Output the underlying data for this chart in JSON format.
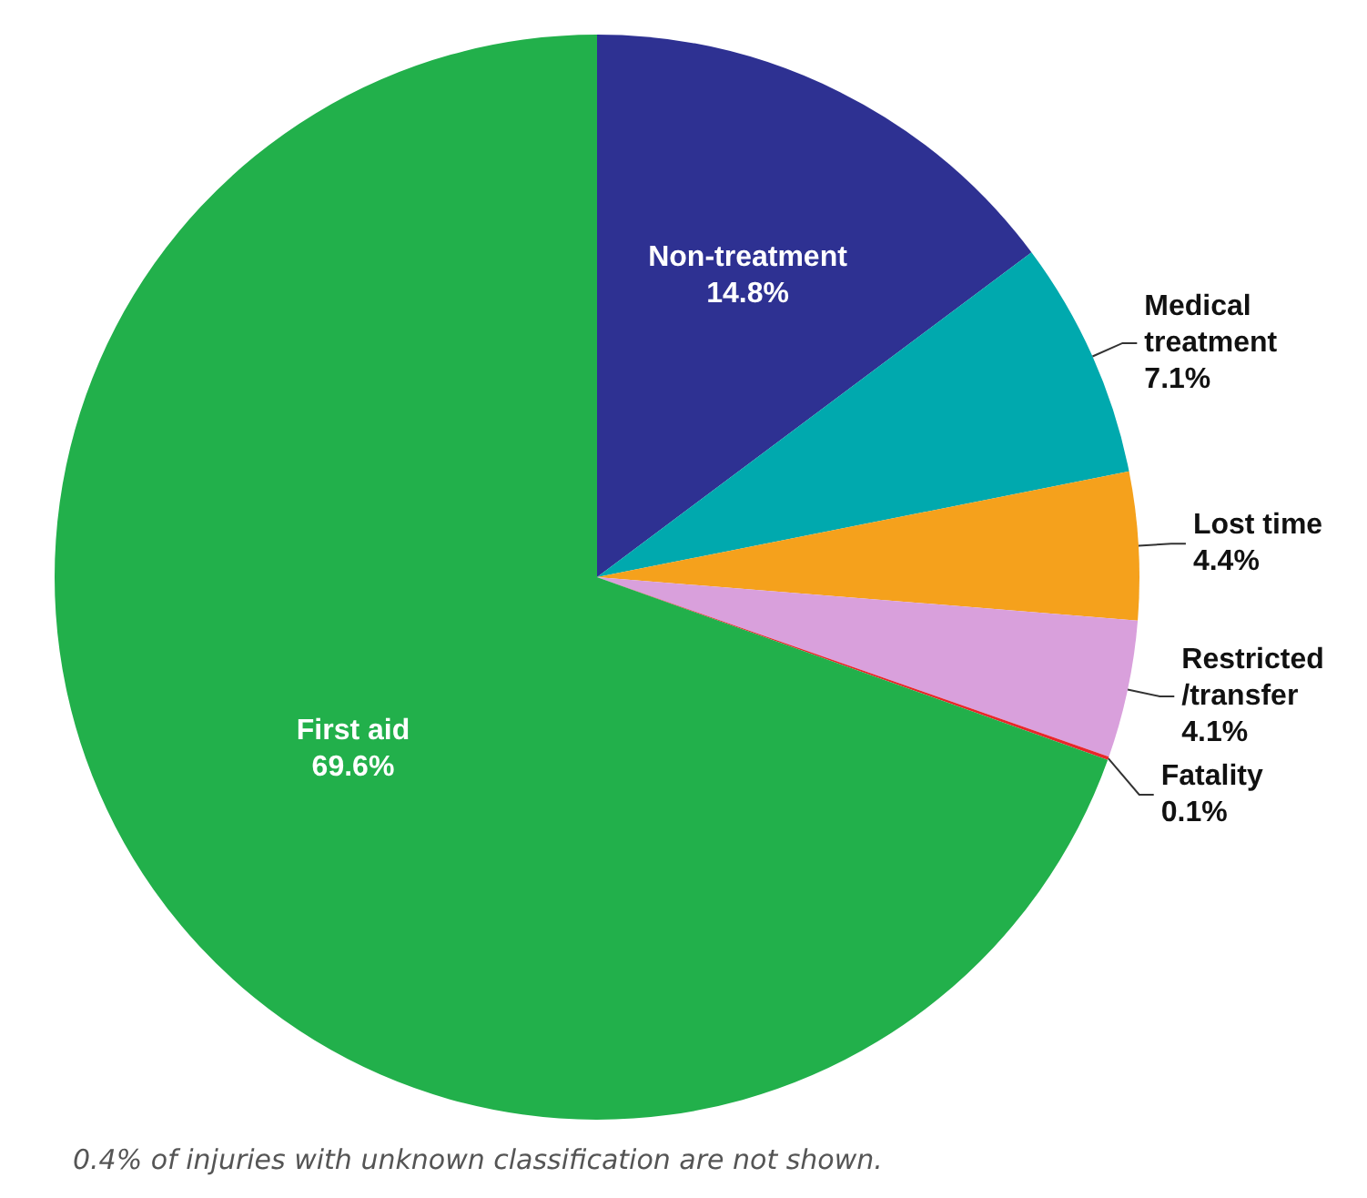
{
  "chart_data": {
    "type": "pie",
    "categories": [
      "Non-treatment",
      "Medical treatment",
      "Lost time",
      "Restricted /transfer",
      "Fatality",
      "First aid"
    ],
    "values": [
      14.8,
      7.1,
      4.4,
      4.1,
      0.1,
      69.6
    ],
    "value_labels": [
      "14.8%",
      "7.1%",
      "4.4%",
      "4.1%",
      "0.1%",
      "69.6%"
    ],
    "colors": [
      "#2e3192",
      "#00a9ae",
      "#f5a11c",
      "#d9a0dc",
      "#e8262b",
      "#22b04b"
    ],
    "legend": false,
    "annotations": [
      "0.4% of injuries with unknown classification are not shown."
    ]
  }
}
